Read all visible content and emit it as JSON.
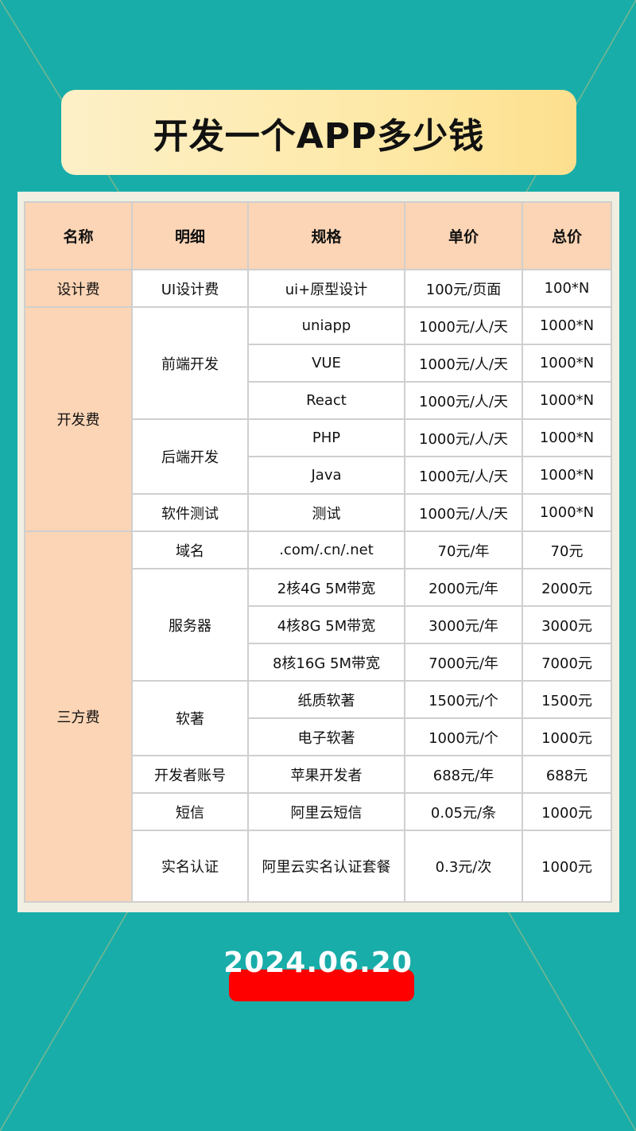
{
  "title": "开发一个APP多少钱",
  "headers": [
    "名称",
    "明细",
    "规格",
    "单价",
    "总价"
  ],
  "groups": [
    {
      "name": "设计费",
      "details": [
        {
          "name": "UI设计费",
          "rows": [
            [
              "ui+原型设计",
              "100元/页面",
              "100*N"
            ]
          ]
        }
      ]
    },
    {
      "name": "开发费",
      "details": [
        {
          "name": "前端开发",
          "rows": [
            [
              "uniapp",
              "1000元/人/天",
              "1000*N"
            ],
            [
              "VUE",
              "1000元/人/天",
              "1000*N"
            ],
            [
              "React",
              "1000元/人/天",
              "1000*N"
            ]
          ]
        },
        {
          "name": "后端开发",
          "rows": [
            [
              "PHP",
              "1000元/人/天",
              "1000*N"
            ],
            [
              "Java",
              "1000元/人/天",
              "1000*N"
            ]
          ]
        },
        {
          "name": "软件测试",
          "rows": [
            [
              "测试",
              "1000元/人/天",
              "1000*N"
            ]
          ]
        }
      ]
    },
    {
      "name": "三方费",
      "details": [
        {
          "name": "域名",
          "rows": [
            [
              ".com/.cn/.net",
              "70元/年",
              "70元"
            ]
          ]
        },
        {
          "name": "服务器",
          "rows": [
            [
              "2核4G 5M带宽",
              "2000元/年",
              "2000元"
            ],
            [
              "4核8G 5M带宽",
              "3000元/年",
              "3000元"
            ],
            [
              "8核16G 5M带宽",
              "7000元/年",
              "7000元"
            ]
          ]
        },
        {
          "name": "软著",
          "rows": [
            [
              "纸质软著",
              "1500元/个",
              "1500元"
            ],
            [
              "电子软著",
              "1000元/个",
              "1000元"
            ]
          ]
        },
        {
          "name": "开发者账号",
          "rows": [
            [
              "苹果开发者",
              "688元/年",
              "688元"
            ]
          ]
        },
        {
          "name": "短信",
          "rows": [
            [
              "阿里云短信",
              "0.05元/条",
              "1000元"
            ]
          ]
        },
        {
          "name": "实名认证",
          "rows": [
            [
              "阿里云实名认证套餐",
              "0.3元/次",
              "1000元"
            ]
          ]
        }
      ]
    }
  ],
  "date": "2024.06.20",
  "colors": {
    "background": "#19ada9",
    "header": "#fbd5b5",
    "date_bar": "#fe0000"
  }
}
